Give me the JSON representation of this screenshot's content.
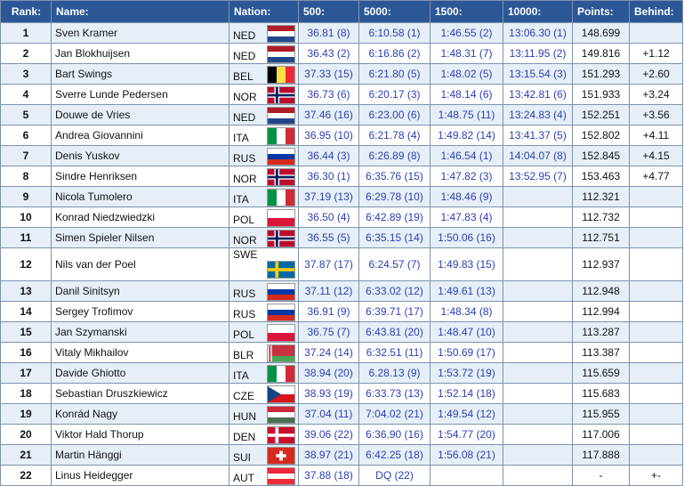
{
  "columns": {
    "rank": "Rank:",
    "name": "Name:",
    "nation": "Nation:",
    "d500": "500:",
    "d5000": "5000:",
    "d1500": "1500:",
    "d10000": "10000:",
    "points": "Points:",
    "behind": "Behind:"
  },
  "flag_colors": {
    "NED": [
      "#ae1c28",
      "#ffffff",
      "#21468b"
    ],
    "BEL": [
      "#000000",
      "#fae042",
      "#ed2939"
    ],
    "NOR": [
      "#ba0c2f",
      "#ffffff",
      "#00205b"
    ],
    "ITA": [
      "#009246",
      "#ffffff",
      "#ce2b37"
    ],
    "RUS": [
      "#ffffff",
      "#0039a6",
      "#d52b1e"
    ],
    "POL": [
      "#ffffff",
      "#dc143c"
    ],
    "SWE": [
      "#006aa7",
      "#fecc00"
    ],
    "BLR": [
      "#c8313e",
      "#4aa657"
    ],
    "CZE": [
      "#ffffff",
      "#d7141a",
      "#11457e"
    ],
    "HUN": [
      "#ce2939",
      "#ffffff",
      "#477050"
    ],
    "DEN": [
      "#c8102e",
      "#ffffff"
    ],
    "SUI": [
      "#d52b1e",
      "#ffffff"
    ],
    "AUT": [
      "#ed2939",
      "#ffffff"
    ]
  },
  "rows": [
    {
      "rank": "1",
      "name": "Sven Kramer",
      "nation": "NED",
      "d500": "36.81 (8)",
      "d5000": "6:10.58 (1)",
      "d1500": "1:46.55 (2)",
      "d10000": "13:06.30 (1)",
      "points": "148.699",
      "behind": ""
    },
    {
      "rank": "2",
      "name": "Jan Blokhuijsen",
      "nation": "NED",
      "d500": "36.43 (2)",
      "d5000": "6:16.86 (2)",
      "d1500": "1:48.31 (7)",
      "d10000": "13:11.95 (2)",
      "points": "149.816",
      "behind": "+1.12"
    },
    {
      "rank": "3",
      "name": "Bart Swings",
      "nation": "BEL",
      "d500": "37.33 (15)",
      "d5000": "6:21.80 (5)",
      "d1500": "1:48.02 (5)",
      "d10000": "13:15.54 (3)",
      "points": "151.293",
      "behind": "+2.60"
    },
    {
      "rank": "4",
      "name": "Sverre Lunde Pedersen",
      "nation": "NOR",
      "d500": "36.73 (6)",
      "d5000": "6:20.17 (3)",
      "d1500": "1:48.14 (6)",
      "d10000": "13:42.81 (6)",
      "points": "151.933",
      "behind": "+3.24"
    },
    {
      "rank": "5",
      "name": "Douwe de Vries",
      "nation": "NED",
      "d500": "37.46 (16)",
      "d5000": "6:23.00 (6)",
      "d1500": "1:48.75 (11)",
      "d10000": "13:24.83 (4)",
      "points": "152.251",
      "behind": "+3.56"
    },
    {
      "rank": "6",
      "name": "Andrea Giovannini",
      "nation": "ITA",
      "d500": "36.95 (10)",
      "d5000": "6:21.78 (4)",
      "d1500": "1:49.82 (14)",
      "d10000": "13:41.37 (5)",
      "points": "152.802",
      "behind": "+4.11"
    },
    {
      "rank": "7",
      "name": "Denis Yuskov",
      "nation": "RUS",
      "d500": "36.44 (3)",
      "d5000": "6:26.89 (8)",
      "d1500": "1:46.54 (1)",
      "d10000": "14:04.07 (8)",
      "points": "152.845",
      "behind": "+4.15"
    },
    {
      "rank": "8",
      "name": "Sindre Henriksen",
      "nation": "NOR",
      "d500": "36.30 (1)",
      "d5000": "6:35.76 (15)",
      "d1500": "1:47.82 (3)",
      "d10000": "13:52.95 (7)",
      "points": "153.463",
      "behind": "+4.77"
    },
    {
      "rank": "9",
      "name": "Nicola Tumolero",
      "nation": "ITA",
      "d500": "37.19 (13)",
      "d5000": "6:29.78 (10)",
      "d1500": "1:48.46 (9)",
      "d10000": "",
      "points": "112.321",
      "behind": ""
    },
    {
      "rank": "10",
      "name": "Konrad Niedzwiedzki",
      "nation": "POL",
      "d500": "36.50 (4)",
      "d5000": "6:42.89 (19)",
      "d1500": "1:47.83 (4)",
      "d10000": "",
      "points": "112.732",
      "behind": ""
    },
    {
      "rank": "11",
      "name": "Simen Spieler Nilsen",
      "nation": "NOR",
      "d500": "36.55 (5)",
      "d5000": "6:35.15 (14)",
      "d1500": "1:50.06 (16)",
      "d10000": "",
      "points": "112.751",
      "behind": ""
    },
    {
      "rank": "12",
      "name": "Nils van der Poel",
      "nation": "SWE",
      "d500": "37.87 (17)",
      "d5000": "6:24.57 (7)",
      "d1500": "1:49.83 (15)",
      "d10000": "",
      "points": "112.937",
      "behind": ""
    },
    {
      "rank": "13",
      "name": "Danil Sinitsyn",
      "nation": "RUS",
      "d500": "37.11 (12)",
      "d5000": "6:33.02 (12)",
      "d1500": "1:49.61 (13)",
      "d10000": "",
      "points": "112.948",
      "behind": ""
    },
    {
      "rank": "14",
      "name": "Sergey Trofimov",
      "nation": "RUS",
      "d500": "36.91 (9)",
      "d5000": "6:39.71 (17)",
      "d1500": "1:48.34 (8)",
      "d10000": "",
      "points": "112.994",
      "behind": ""
    },
    {
      "rank": "15",
      "name": "Jan Szymanski",
      "nation": "POL",
      "d500": "36.75 (7)",
      "d5000": "6:43.81 (20)",
      "d1500": "1:48.47 (10)",
      "d10000": "",
      "points": "113.287",
      "behind": ""
    },
    {
      "rank": "16",
      "name": "Vitaly Mikhailov",
      "nation": "BLR",
      "d500": "37.24 (14)",
      "d5000": "6:32.51 (11)",
      "d1500": "1:50.69 (17)",
      "d10000": "",
      "points": "113.387",
      "behind": ""
    },
    {
      "rank": "17",
      "name": "Davide Ghiotto",
      "nation": "ITA",
      "d500": "38.94 (20)",
      "d5000": "6.28.13 (9)",
      "d1500": "1:53.72 (19)",
      "d10000": "",
      "points": "115.659",
      "behind": ""
    },
    {
      "rank": "18",
      "name": "Sebastian Druszkiewicz",
      "nation": "CZE",
      "d500": "38.93 (19)",
      "d5000": "6:33.73 (13)",
      "d1500": "1:52.14 (18)",
      "d10000": "",
      "points": "115.683",
      "behind": ""
    },
    {
      "rank": "19",
      "name": "Konrád Nagy",
      "nation": "HUN",
      "d500": "37.04 (11)",
      "d5000": "7:04.02 (21)",
      "d1500": "1:49.54 (12)",
      "d10000": "",
      "points": "115.955",
      "behind": ""
    },
    {
      "rank": "20",
      "name": "Viktor Hald Thorup",
      "nation": "DEN",
      "d500": "39.06 (22)",
      "d5000": "6:36.90 (16)",
      "d1500": "1:54.77 (20)",
      "d10000": "",
      "points": "117.006",
      "behind": ""
    },
    {
      "rank": "21",
      "name": "Martin Hänggi",
      "nation": "SUI",
      "d500": "38.97 (21)",
      "d5000": "6:42.25 (18)",
      "d1500": "1:56.08 (21)",
      "d10000": "",
      "points": "117.888",
      "behind": ""
    },
    {
      "rank": "22",
      "name": "Linus Heidegger",
      "nation": "AUT",
      "d500": "37.88 (18)",
      "d5000": "DQ (22)",
      "d1500": "",
      "d10000": "",
      "points": "-",
      "behind": "+-"
    }
  ]
}
